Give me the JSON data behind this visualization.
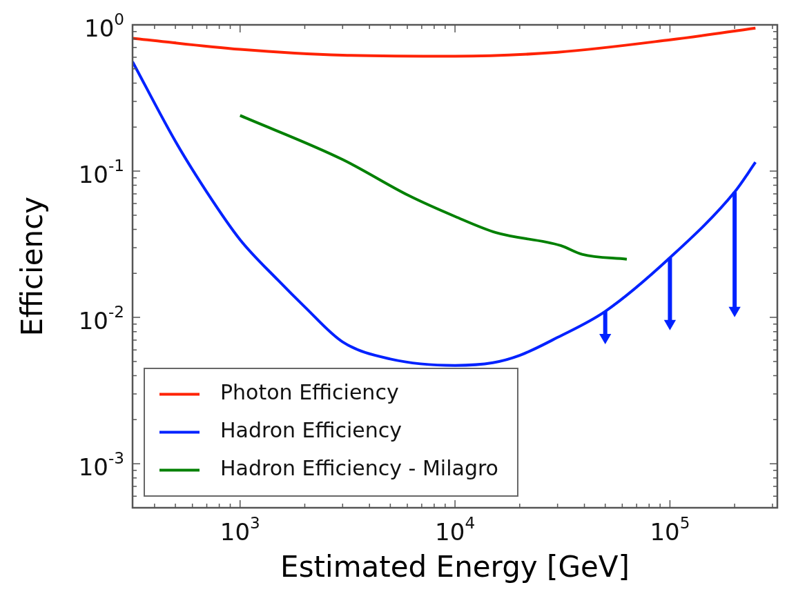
{
  "chart_data": {
    "type": "line",
    "xlabel": "Estimated Energy [GeV]",
    "ylabel": "Efficiency",
    "log": "xy",
    "legend": "bottom left",
    "grid": false,
    "xlim": [
      316,
      316000
    ],
    "xticks": [
      {
        "value": 400,
        "label": null
      },
      {
        "value": 500,
        "label": null
      },
      {
        "value": 600,
        "label": null
      },
      {
        "value": 700,
        "label": null
      },
      {
        "value": 800,
        "label": null
      },
      {
        "value": 900,
        "label": null
      },
      {
        "value": 1000,
        "label": "10$^{3}$"
      },
      {
        "value": 2000,
        "label": null
      },
      {
        "value": 3000,
        "label": null
      },
      {
        "value": 4000,
        "label": null
      },
      {
        "value": 5000,
        "label": null
      },
      {
        "value": 6000,
        "label": null
      },
      {
        "value": 7000,
        "label": null
      },
      {
        "value": 8000,
        "label": null
      },
      {
        "value": 9000,
        "label": null
      },
      {
        "value": 10000,
        "label": "10$^{4}$"
      },
      {
        "value": 20000,
        "label": null
      },
      {
        "value": 30000,
        "label": null
      },
      {
        "value": 40000,
        "label": null
      },
      {
        "value": 50000,
        "label": null
      },
      {
        "value": 60000,
        "label": null
      },
      {
        "value": 70000,
        "label": null
      },
      {
        "value": 80000,
        "label": null
      },
      {
        "value": 90000,
        "label": null
      },
      {
        "value": 100000,
        "label": "10$^{5}$"
      },
      {
        "value": 200000,
        "label": null
      },
      {
        "value": 300000,
        "label": null
      }
    ],
    "ylim": [
      0.0005,
      1
    ],
    "yticks": [
      {
        "value": 0.0006,
        "label": null
      },
      {
        "value": 0.0007,
        "label": null
      },
      {
        "value": 0.0008,
        "label": null
      },
      {
        "value": 0.0009,
        "label": null
      },
      {
        "value": 0.001,
        "label": "10$^{-3}$"
      },
      {
        "value": 0.002,
        "label": null
      },
      {
        "value": 0.003,
        "label": null
      },
      {
        "value": 0.004,
        "label": null
      },
      {
        "value": 0.005,
        "label": null
      },
      {
        "value": 0.006,
        "label": null
      },
      {
        "value": 0.007,
        "label": null
      },
      {
        "value": 0.008,
        "label": null
      },
      {
        "value": 0.009,
        "label": null
      },
      {
        "value": 0.01,
        "label": "10$^{-2}$"
      },
      {
        "value": 0.02,
        "label": null
      },
      {
        "value": 0.03,
        "label": null
      },
      {
        "value": 0.04,
        "label": null
      },
      {
        "value": 0.05,
        "label": null
      },
      {
        "value": 0.06,
        "label": null
      },
      {
        "value": 0.07,
        "label": null
      },
      {
        "value": 0.08,
        "label": null
      },
      {
        "value": 0.09,
        "label": null
      },
      {
        "value": 0.1,
        "label": "10$^{-1}$"
      },
      {
        "value": 0.2,
        "label": null
      },
      {
        "value": 0.3,
        "label": null
      },
      {
        "value": 0.4,
        "label": null
      },
      {
        "value": 0.5,
        "label": null
      },
      {
        "value": 0.6,
        "label": null
      },
      {
        "value": 0.7,
        "label": null
      },
      {
        "value": 0.8,
        "label": null
      },
      {
        "value": 0.9,
        "label": null
      },
      {
        "value": 1,
        "label": "10$^{0}$"
      }
    ],
    "series": [
      {
        "name": "Photon Efficiency",
        "color": "#ff2200",
        "x": [
          316,
          1000,
          3000,
          10000,
          30000,
          100000,
          250000
        ],
        "values": [
          0.81,
          0.68,
          0.62,
          0.61,
          0.65,
          0.79,
          0.95
        ]
      },
      {
        "name": "Hadron Efficiency",
        "color": "#0022ff",
        "x": [
          316,
          500,
          700,
          1000,
          1500,
          2000,
          3000,
          5000,
          10000,
          15000,
          20000,
          30000,
          50000,
          100000,
          200000,
          250000
        ],
        "values": [
          0.56,
          0.16,
          0.072,
          0.034,
          0.018,
          0.0118,
          0.0068,
          0.0052,
          0.0047,
          0.0049,
          0.0055,
          0.0073,
          0.011,
          0.0256,
          0.072,
          0.115
        ]
      },
      {
        "name": "Hadron Efficiency - Milagro",
        "color": "#008000",
        "x": [
          1000,
          3000,
          6100,
          10000,
          15500,
          31000,
          39000,
          63000
        ],
        "values": [
          0.24,
          0.12,
          0.068,
          0.049,
          0.038,
          0.031,
          0.027,
          0.025
        ]
      },
      {
        "color": "#0022ff",
        "type": "scatter",
        "marker": "triangle",
        "x": [
          50000,
          100000,
          200000
        ],
        "values": [
          0.0073,
          0.0091,
          0.0112
        ],
        "errors": [
          [
            0.0073,
            0.011
          ],
          [
            0.0091,
            0.0256
          ],
          [
            0.0112,
            0.072
          ]
        ]
      }
    ]
  }
}
